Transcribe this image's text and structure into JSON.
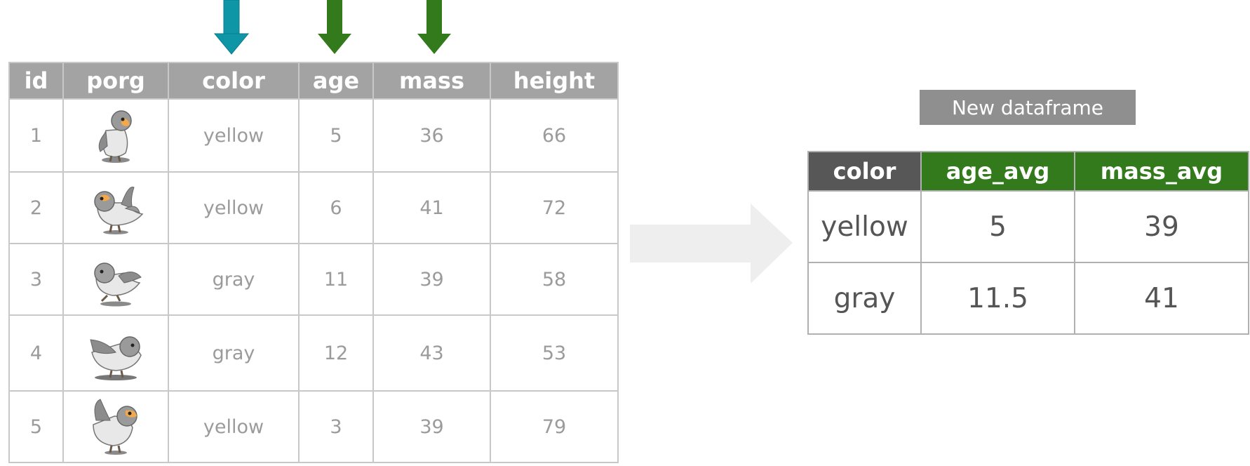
{
  "colors": {
    "group_arrow": "#0e96a6",
    "summary_arrow": "#337a1d",
    "flow_arrow": "#eeeeee",
    "header_gray": "#a3a3a3",
    "grouped_header": "#575757",
    "summary_header": "#337a1d"
  },
  "source_table": {
    "headers": [
      "id",
      "porg",
      "color",
      "age",
      "mass",
      "height"
    ],
    "rows": [
      {
        "id": "1",
        "porg": "porg-icon",
        "color": "yellow",
        "age": "5",
        "mass": "36",
        "height": "66"
      },
      {
        "id": "2",
        "porg": "porg-icon",
        "color": "yellow",
        "age": "6",
        "mass": "41",
        "height": "72"
      },
      {
        "id": "3",
        "porg": "porg-icon",
        "color": "gray",
        "age": "11",
        "mass": "39",
        "height": "58"
      },
      {
        "id": "4",
        "porg": "porg-icon",
        "color": "gray",
        "age": "12",
        "mass": "43",
        "height": "53"
      },
      {
        "id": "5",
        "porg": "porg-icon",
        "color": "yellow",
        "age": "3",
        "mass": "39",
        "height": "79"
      }
    ]
  },
  "result": {
    "label": "New dataframe",
    "headers": [
      "color",
      "age_avg",
      "mass_avg"
    ],
    "rows": [
      {
        "color": "yellow",
        "age_avg": "5",
        "mass_avg": "39"
      },
      {
        "color": "gray",
        "age_avg": "11.5",
        "mass_avg": "41"
      }
    ]
  }
}
